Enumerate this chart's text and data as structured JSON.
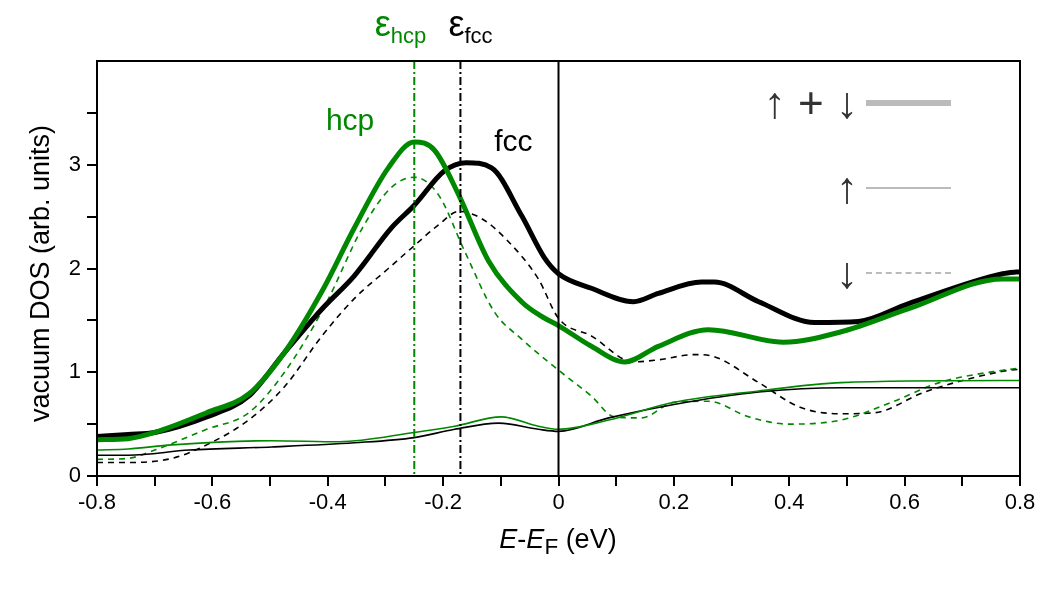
{
  "chart_data": {
    "type": "line",
    "xlabel": "E-E$_{F}$ (eV)",
    "ylabel": "vacuum DOS (arb. units)",
    "x": [
      -0.8,
      -0.746,
      -0.7,
      -0.61,
      -0.537,
      -0.475,
      -0.41,
      -0.354,
      -0.295,
      -0.25,
      -0.215,
      -0.173,
      -0.121,
      -0.064,
      -0.03,
      0,
      0.057,
      0.115,
      0.173,
      0.26,
      0.39,
      0.49,
      0.606,
      0.77,
      0.8
    ],
    "series": [
      {
        "color": "#008800",
        "values": [
          0.35,
          0.36,
          0.42,
          0.61,
          0.79,
          1.19,
          1.78,
          2.39,
          2.97,
          3.22,
          3.14,
          2.71,
          2.07,
          1.68,
          1.54,
          1.45,
          1.25,
          1.1,
          1.25,
          1.41,
          1.29,
          1.39,
          1.61,
          1.9,
          1.9
        ]
      },
      {
        "color": "#000000",
        "x": [
          -0.8,
          -0.746,
          -0.7,
          -0.61,
          -0.537,
          -0.475,
          -0.41,
          -0.354,
          -0.29,
          -0.25,
          -0.198,
          -0.16,
          -0.116,
          -0.064,
          -0.024,
          0,
          0.057,
          0.13,
          0.173,
          0.248,
          0.27,
          0.347,
          0.444,
          0.52,
          0.606,
          0.77,
          0.8
        ],
        "values": [
          0.38,
          0.4,
          0.42,
          0.57,
          0.77,
          1.19,
          1.61,
          1.93,
          2.39,
          2.61,
          2.94,
          3.02,
          2.97,
          2.51,
          2.1,
          1.95,
          1.81,
          1.68,
          1.76,
          1.87,
          1.87,
          1.68,
          1.48,
          1.49,
          1.66,
          1.95,
          1.97
        ]
      },
      {
        "color": "#008800",
        "x": [
          -0.8,
          -0.746,
          -0.67,
          -0.497,
          -0.38,
          -0.25,
          -0.18,
          -0.099,
          -0.035,
          0,
          0.087,
          0.2,
          0.347,
          0.49,
          0.77,
          0.8
        ],
        "values": [
          0.25,
          0.26,
          0.3,
          0.34,
          0.33,
          0.42,
          0.48,
          0.57,
          0.48,
          0.45,
          0.54,
          0.71,
          0.82,
          0.9,
          0.92,
          0.92
        ]
      },
      {
        "color": "#000000",
        "x": [
          -0.8,
          -0.746,
          -0.64,
          -0.497,
          -0.354,
          -0.25,
          -0.18,
          -0.104,
          -0.035,
          0,
          0.087,
          0.2,
          0.347,
          0.49,
          0.77,
          0.8
        ],
        "values": [
          0.2,
          0.2,
          0.25,
          0.28,
          0.32,
          0.37,
          0.45,
          0.51,
          0.45,
          0.43,
          0.56,
          0.69,
          0.81,
          0.85,
          0.85,
          0.85
        ]
      },
      {
        "color": "#008800",
        "line_style": "dashed",
        "x": [
          -0.8,
          -0.746,
          -0.7,
          -0.61,
          -0.537,
          -0.475,
          -0.405,
          -0.34,
          -0.29,
          -0.25,
          -0.208,
          -0.163,
          -0.111,
          -0.064,
          0,
          0.057,
          0.097,
          0.144,
          0.2,
          0.26,
          0.33,
          0.4,
          0.49,
          0.577,
          0.66,
          0.77,
          0.8
        ],
        "values": [
          0.16,
          0.17,
          0.25,
          0.45,
          0.61,
          1.0,
          1.64,
          2.39,
          2.78,
          2.88,
          2.71,
          2.17,
          1.58,
          1.32,
          1.02,
          0.77,
          0.57,
          0.56,
          0.71,
          0.72,
          0.57,
          0.5,
          0.54,
          0.71,
          0.9,
          1.02,
          1.04
        ]
      },
      {
        "color": "#000000",
        "line_style": "dashed",
        "x": [
          -0.8,
          -0.746,
          -0.67,
          -0.61,
          -0.537,
          -0.475,
          -0.41,
          -0.354,
          -0.295,
          -0.25,
          -0.208,
          -0.173,
          -0.133,
          -0.087,
          -0.035,
          0,
          0.057,
          0.13,
          0.173,
          0.236,
          0.27,
          0.347,
          0.42,
          0.49,
          0.548,
          0.635,
          0.77,
          0.8
        ],
        "values": [
          0.13,
          0.13,
          0.17,
          0.3,
          0.54,
          0.86,
          1.35,
          1.71,
          2.0,
          2.22,
          2.42,
          2.55,
          2.48,
          2.26,
          1.9,
          1.52,
          1.35,
          1.1,
          1.12,
          1.17,
          1.15,
          0.9,
          0.66,
          0.6,
          0.61,
          0.81,
          1.01,
          1.03
        ]
      }
    ],
    "xlim": [
      -0.8,
      0.8
    ],
    "ylim": [
      0,
      4
    ],
    "xticks": [
      -0.8,
      {
        "value": -0.7,
        "label": null
      },
      -0.6,
      {
        "value": -0.5,
        "label": null
      },
      -0.4,
      {
        "value": -0.3,
        "label": null
      },
      -0.2,
      {
        "value": -0.1,
        "label": null
      },
      0,
      {
        "value": 0.1,
        "label": null
      },
      0.2,
      {
        "value": 0.3,
        "label": null
      },
      0.4,
      {
        "value": 0.5,
        "label": null
      },
      0.6,
      {
        "value": 0.7,
        "label": null
      },
      0.8
    ],
    "yticks": [
      0,
      {
        "value": 0.5,
        "label": null
      },
      1,
      {
        "value": 1.5,
        "label": null
      },
      2,
      {
        "value": 2.5,
        "label": null
      },
      3,
      {
        "value": 3.5,
        "label": null
      }
    ],
    "ref_lines": [
      {
        "axis": "x",
        "value": -0.25,
        "label": "ε$_{hcp}$",
        "color": "#008800",
        "line_style": "dashdot"
      },
      {
        "axis": "x",
        "value": -0.17,
        "label": "ε$_{fcc}$",
        "color": "#000000",
        "line_style": "dashdot"
      },
      {
        "axis": "x",
        "value": 0,
        "color": "#000000",
        "line_style": "solid"
      }
    ],
    "annotations": [
      "hcp",
      "fcc",
      "↑ + ↓",
      "↑",
      "↓"
    ],
    "line_style": "solid",
    "marker": "none",
    "legend": false
  }
}
